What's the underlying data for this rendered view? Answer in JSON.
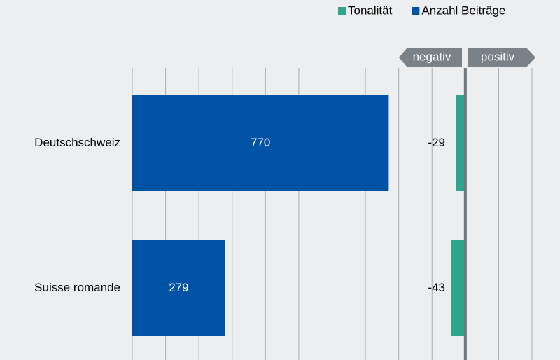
{
  "chart_data": {
    "type": "bar",
    "orientation": "horizontal",
    "categories": [
      "Deutschschweiz",
      "Suisse romande"
    ],
    "series": [
      {
        "name": "Tonalität",
        "color": "#2fa58c",
        "values": [
          -29,
          -43
        ],
        "axis": "x2"
      },
      {
        "name": "Anzahl Beiträge",
        "color": "#0052a5",
        "values": [
          770,
          279
        ]
      }
    ],
    "xlim": [
      0,
      1200
    ],
    "xticks": [
      0,
      100,
      200,
      300,
      400,
      500,
      600,
      700,
      800,
      900,
      1000,
      1100,
      1200
    ],
    "x2lim": [
      -1000,
      200
    ],
    "annotations": [
      "negativ",
      "positiv"
    ],
    "grid": true,
    "legend": "top-right"
  }
}
